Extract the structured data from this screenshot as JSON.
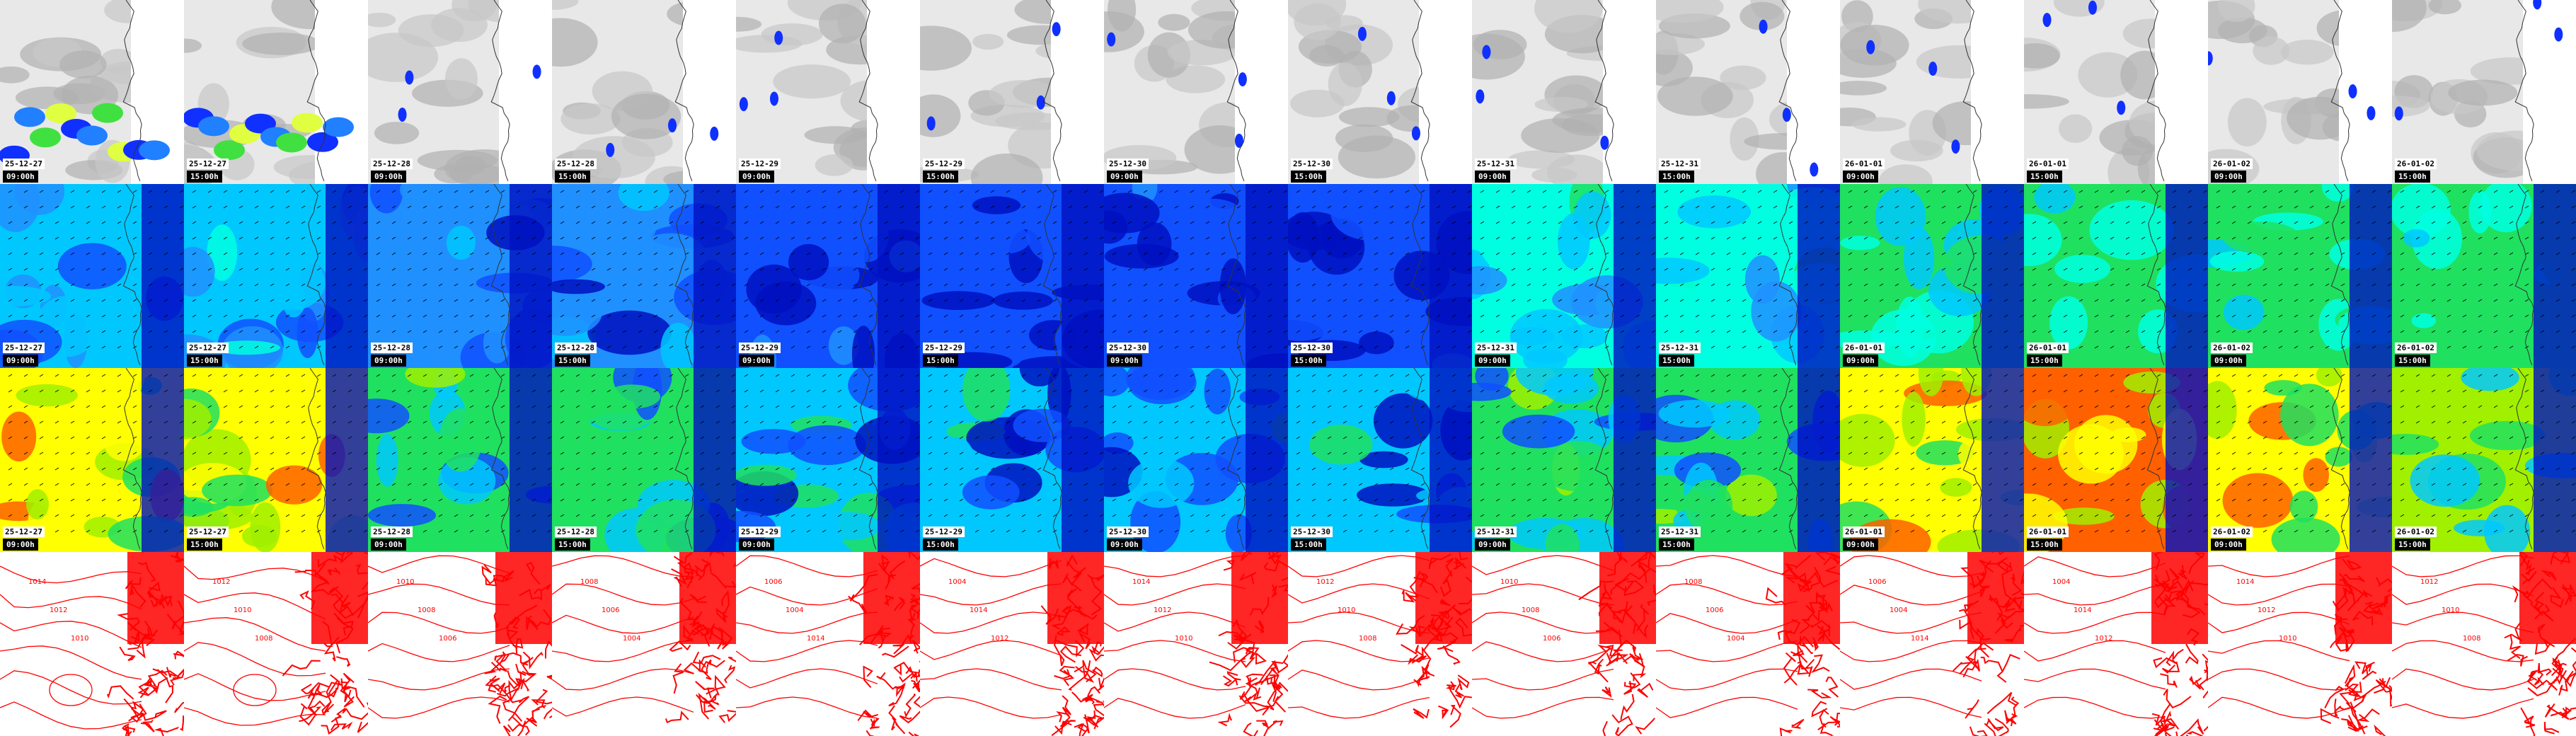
{
  "panels": {
    "rows": [
      {
        "id": "precipitation",
        "base": "#e8e8e8",
        "palette": [
          "#c8c8c8",
          "#b0b0b0",
          "#1030ff",
          "#2080ff",
          "#40e040",
          "#e0ff40"
        ]
      },
      {
        "id": "wind",
        "palette": [
          "#0010c0",
          "#1050ff",
          "#2090ff",
          "#00c8ff",
          "#00ffe0",
          "#20e060"
        ]
      },
      {
        "id": "gusts",
        "palette": [
          "#0010c0",
          "#1050ff",
          "#00c8ff",
          "#20e060",
          "#a0f000",
          "#ffff00",
          "#ff6000"
        ]
      },
      {
        "id": "pressure",
        "line_color": "#ff0000"
      }
    ],
    "timesteps": [
      {
        "date": "25-12-27",
        "time": "09:00h"
      },
      {
        "date": "25-12-27",
        "time": "15:00h"
      },
      {
        "date": "25-12-28",
        "time": "09:00h"
      },
      {
        "date": "25-12-28",
        "time": "15:00h"
      },
      {
        "date": "25-12-29",
        "time": "09:00h"
      },
      {
        "date": "25-12-29",
        "time": "15:00h"
      },
      {
        "date": "25-12-30",
        "time": "09:00h"
      },
      {
        "date": "25-12-30",
        "time": "15:00h"
      },
      {
        "date": "25-12-31",
        "time": "09:00h"
      },
      {
        "date": "25-12-31",
        "time": "15:00h"
      },
      {
        "date": "26-01-01",
        "time": "09:00h"
      },
      {
        "date": "26-01-01",
        "time": "15:00h"
      },
      {
        "date": "26-01-02",
        "time": "09:00h"
      },
      {
        "date": "26-01-02",
        "time": "15:00h"
      }
    ],
    "wind_level": [
      2,
      2,
      1,
      1,
      0,
      0,
      0,
      0,
      3,
      3,
      4,
      4,
      4,
      4
    ],
    "gust_level": [
      4,
      4,
      2,
      2,
      1,
      1,
      1,
      1,
      2,
      2,
      4,
      5,
      4,
      3
    ],
    "pressure_labels": [
      "1014",
      "1012",
      "1010",
      "1008",
      "1006",
      "1004"
    ]
  }
}
